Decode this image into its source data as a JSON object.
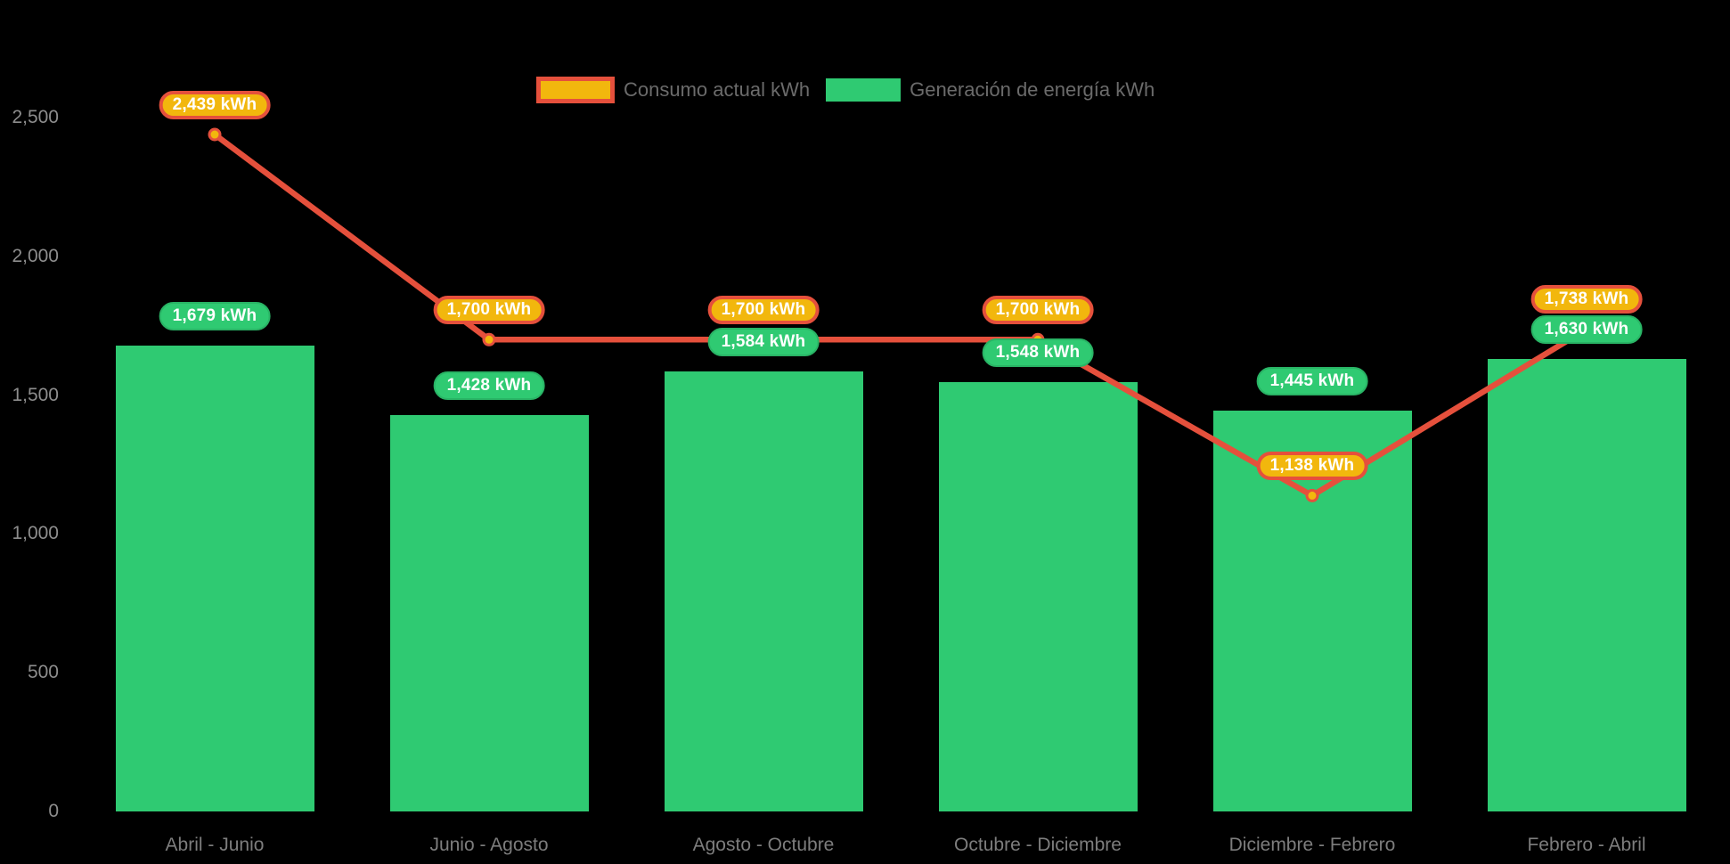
{
  "chart_data": {
    "type": "bar",
    "categories": [
      "Abril - Junio",
      "Junio - Agosto",
      "Agosto - Octubre",
      "Octubre - Diciembre",
      "Diciembre - Febrero",
      "Febrero - Abril"
    ],
    "series": [
      {
        "name": "Consumo actual kWh",
        "type": "line",
        "values": [
          2439,
          1700,
          1700,
          1700,
          1138,
          1738
        ],
        "point_labels": [
          "2,439 kWh",
          "1,700 kWh",
          "1,700 kWh",
          "1,700 kWh",
          "1,138 kWh",
          "1,738 kWh"
        ],
        "color": "#e5503c",
        "marker_color": "#f2b70d"
      },
      {
        "name": "Generación de energía kWh",
        "type": "bar",
        "values": [
          1679,
          1428,
          1584,
          1548,
          1445,
          1630
        ],
        "point_labels": [
          "1,679 kWh",
          "1,428 kWh",
          "1,584 kWh",
          "1,548 kWh",
          "1,445 kWh",
          "1,630 kWh"
        ],
        "color": "#2fca72"
      }
    ],
    "ylim": [
      0,
      2500
    ],
    "yticks": [
      {
        "value": 0,
        "label": "0"
      },
      {
        "value": 500,
        "label": "500"
      },
      {
        "value": 1000,
        "label": "1,000"
      },
      {
        "value": 1500,
        "label": "1,500"
      },
      {
        "value": 2000,
        "label": "2,000"
      },
      {
        "value": 2500,
        "label": "2,500"
      }
    ],
    "grid": false,
    "legend_position": "top-center",
    "background": "#000000"
  },
  "legend": {
    "consumo_label": "Consumo actual kWh",
    "generacion_label": "Generación de energía kWh"
  },
  "colors": {
    "bar_green": "#2fca72",
    "green_pill_border": "#29b465",
    "line_red": "#e5503c",
    "gold": "#f2b70d",
    "y_tick_text": "#8d8d8d",
    "x_tick_text": "#7d7d7d",
    "legend_text": "#6b6b6b",
    "pill_text": "#ffffff"
  }
}
